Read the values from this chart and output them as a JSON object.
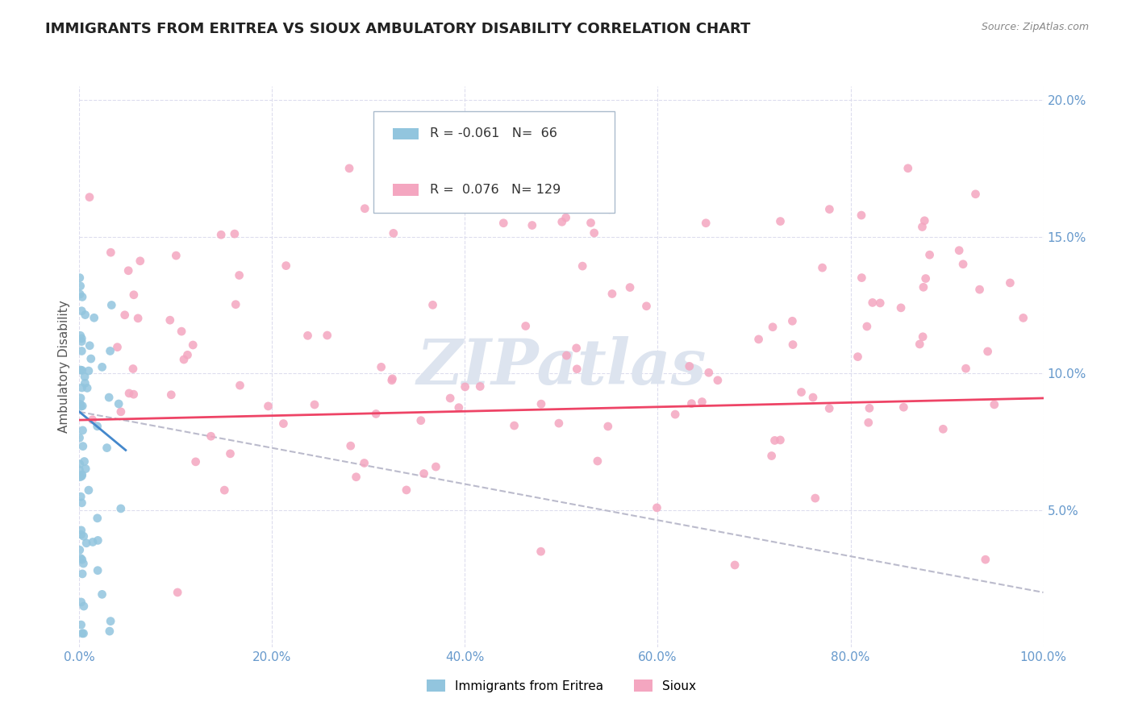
{
  "title": "IMMIGRANTS FROM ERITREA VS SIOUX AMBULATORY DISABILITY CORRELATION CHART",
  "source": "Source: ZipAtlas.com",
  "ylabel_label": "Ambulatory Disability",
  "xlim": [
    0,
    1.0
  ],
  "ylim": [
    0,
    0.205
  ],
  "legend1_r": "-0.061",
  "legend1_n": "66",
  "legend2_r": "0.076",
  "legend2_n": "129",
  "color_blue": "#92C5DE",
  "color_pink": "#F4A6C0",
  "trendline_blue": "#4488CC",
  "trendline_pink": "#EE4466",
  "trendline_dashed": "#BBBBCC",
  "watermark": "ZIPatlas",
  "background_color": "#FFFFFF",
  "grid_color": "#DDDDEE",
  "ytick_color": "#6699CC",
  "xtick_color": "#6699CC"
}
